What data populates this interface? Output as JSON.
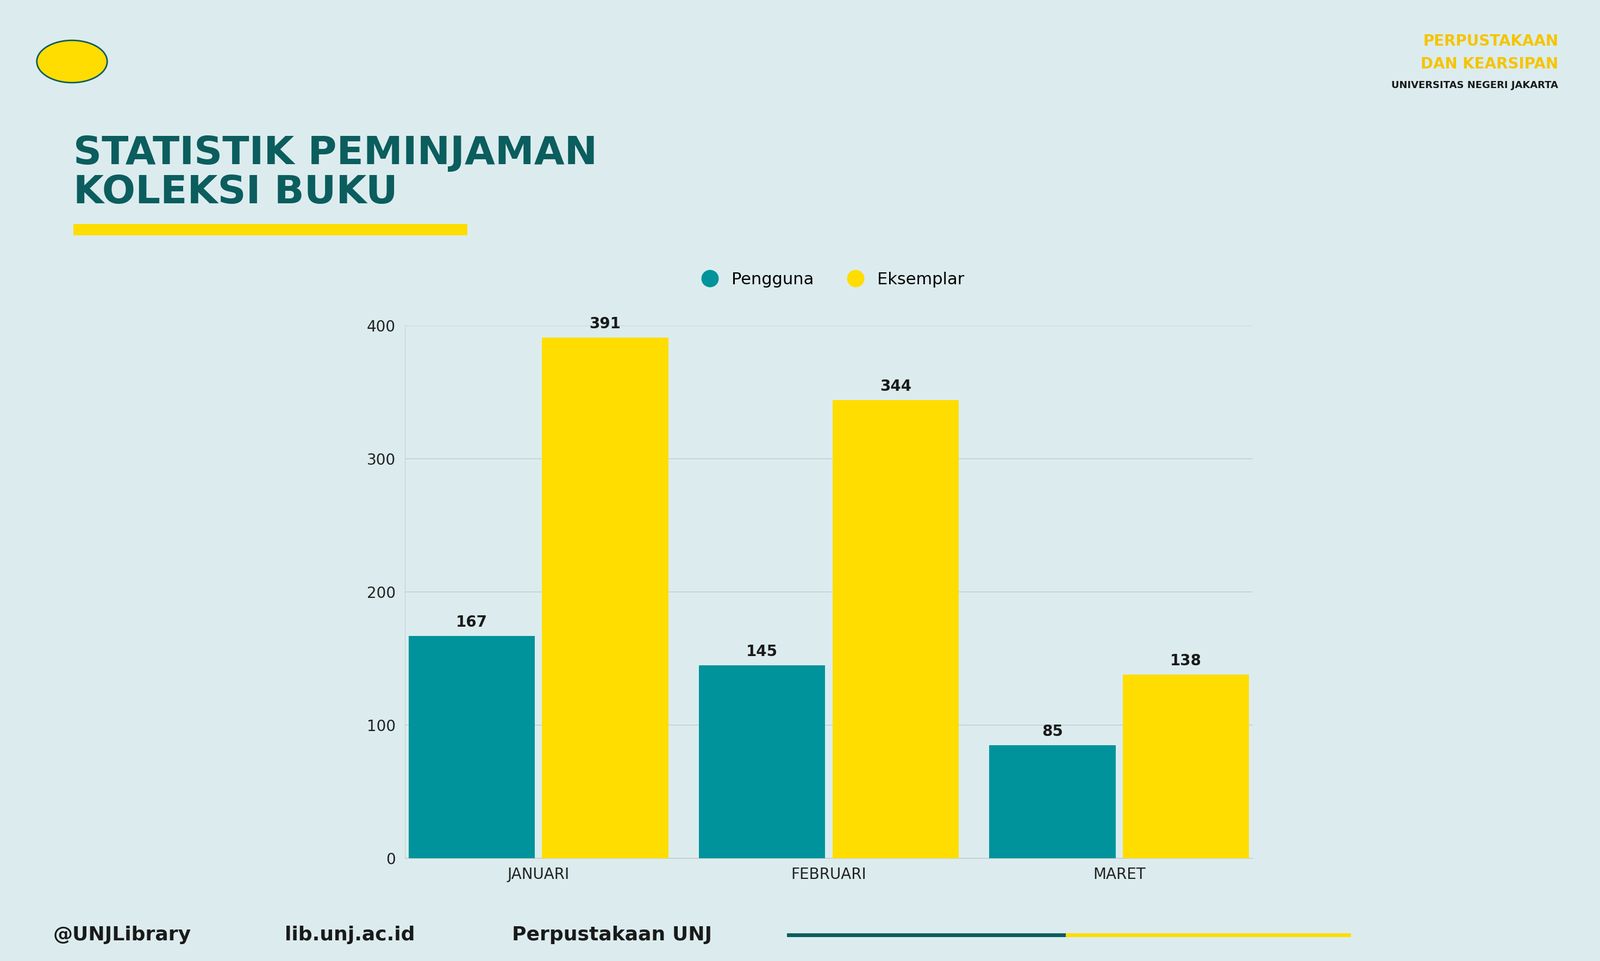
{
  "chart_data": {
    "type": "bar",
    "title": "STATISTIK PEMINJAMAN\nKOLEKSI BUKU",
    "categories": [
      "JANUARI",
      "FEBRUARI",
      "MARET"
    ],
    "series": [
      {
        "name": "Pengguna",
        "color": "#00939b",
        "values": [
          167,
          145,
          85
        ]
      },
      {
        "name": "Eksemplar",
        "color": "#ffdd00",
        "values": [
          391,
          344,
          138
        ]
      }
    ],
    "ylim": [
      0,
      400
    ],
    "yticks": [
      0,
      100,
      200,
      300,
      400
    ],
    "grid": true,
    "data_labels": true,
    "legend": "upper center",
    "annotations": [
      "PERPUSTAKAAN",
      "DAN KEARSIPAN",
      "UNIVERSITAS NEGERI JAKARTA",
      "@UNJLibrary",
      "lib.unj.ac.id",
      "Perpustakaan UNJ"
    ]
  }
}
